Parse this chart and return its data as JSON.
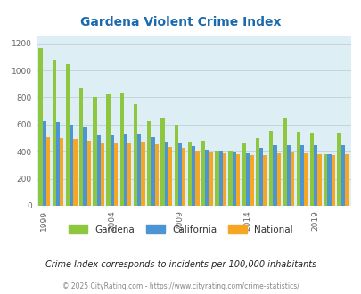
{
  "title": "Gardena Violent Crime Index",
  "title_color": "#1a6aad",
  "years": [
    1999,
    2000,
    2001,
    2002,
    2003,
    2004,
    2005,
    2006,
    2007,
    2008,
    2009,
    2010,
    2011,
    2012,
    2013,
    2014,
    2015,
    2016,
    2017,
    2018,
    2019,
    2020,
    2021
  ],
  "gardena": [
    1165,
    1080,
    1045,
    870,
    800,
    825,
    835,
    750,
    625,
    648,
    600,
    475,
    480,
    410,
    405,
    460,
    500,
    555,
    645,
    545,
    540,
    380,
    540
  ],
  "california": [
    625,
    620,
    600,
    582,
    525,
    525,
    535,
    530,
    505,
    475,
    470,
    440,
    415,
    400,
    395,
    390,
    425,
    445,
    450,
    450,
    445,
    380,
    445
  ],
  "national": [
    510,
    500,
    495,
    480,
    465,
    463,
    470,
    475,
    455,
    435,
    430,
    405,
    395,
    390,
    380,
    375,
    375,
    390,
    395,
    390,
    380,
    375,
    380
  ],
  "gardena_color": "#8dc63f",
  "california_color": "#4d94d5",
  "national_color": "#f5a623",
  "bg_color": "#ddeef5",
  "ylim": [
    0,
    1260
  ],
  "yticks": [
    0,
    200,
    400,
    600,
    800,
    1000,
    1200
  ],
  "xtick_years": [
    1999,
    2004,
    2009,
    2014,
    2019
  ],
  "subtitle": "Crime Index corresponds to incidents per 100,000 inhabitants",
  "subtitle_color": "#222222",
  "copyright": "© 2025 CityRating.com - https://www.cityrating.com/crime-statistics/",
  "copyright_color": "#888888"
}
